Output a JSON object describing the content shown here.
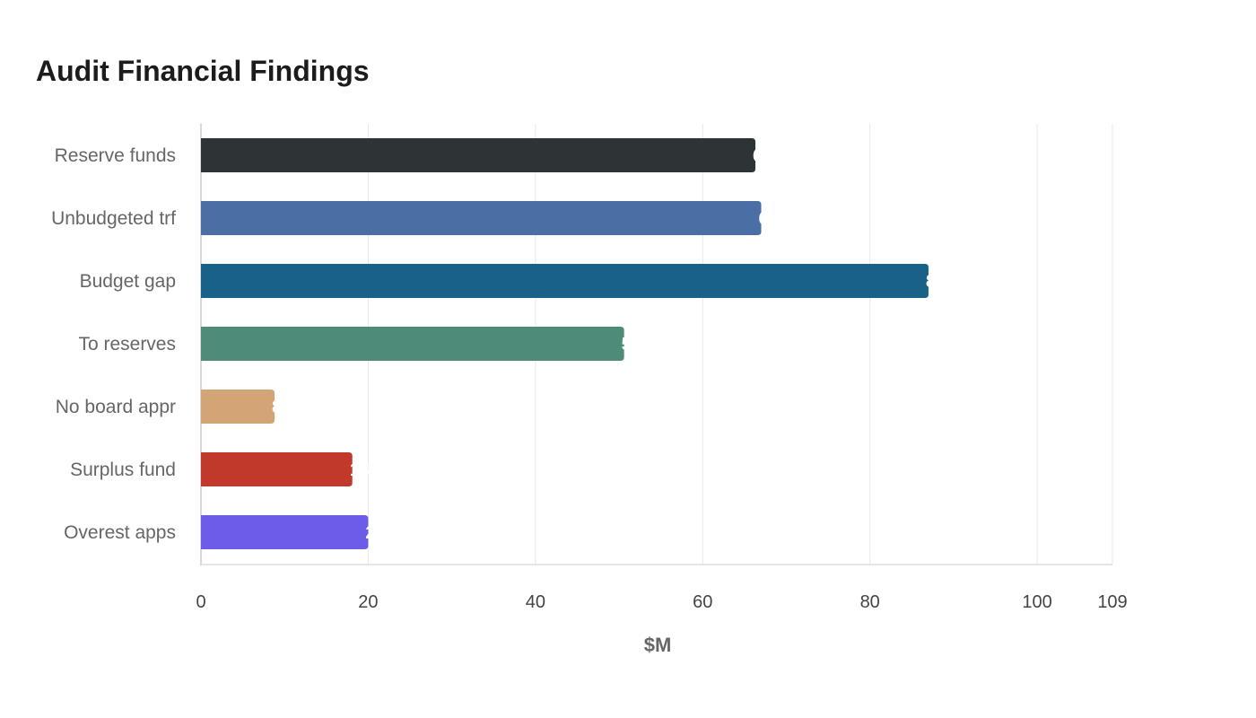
{
  "chart_data": {
    "type": "bar",
    "orientation": "horizontal",
    "title": "Audit Financial Findings",
    "xlabel": "$M",
    "ylabel": "",
    "categories": [
      "Reserve funds",
      "Unbudgeted trf",
      "Budget gap",
      "To reserves",
      "No board appr",
      "Surplus fund",
      "Overest apps"
    ],
    "values": [
      66.3,
      67,
      87,
      50.6,
      8.8,
      18.1,
      20
    ],
    "colors": [
      "#2e3436",
      "#4a6fa5",
      "#1a6188",
      "#4e8c79",
      "#d4a574",
      "#c0392b",
      "#6c5ce7"
    ],
    "xlim": [
      0,
      109
    ],
    "xticks": [
      "0",
      "20",
      "40",
      "60",
      "80",
      "100",
      "109"
    ],
    "grid": true,
    "legend": "none"
  }
}
